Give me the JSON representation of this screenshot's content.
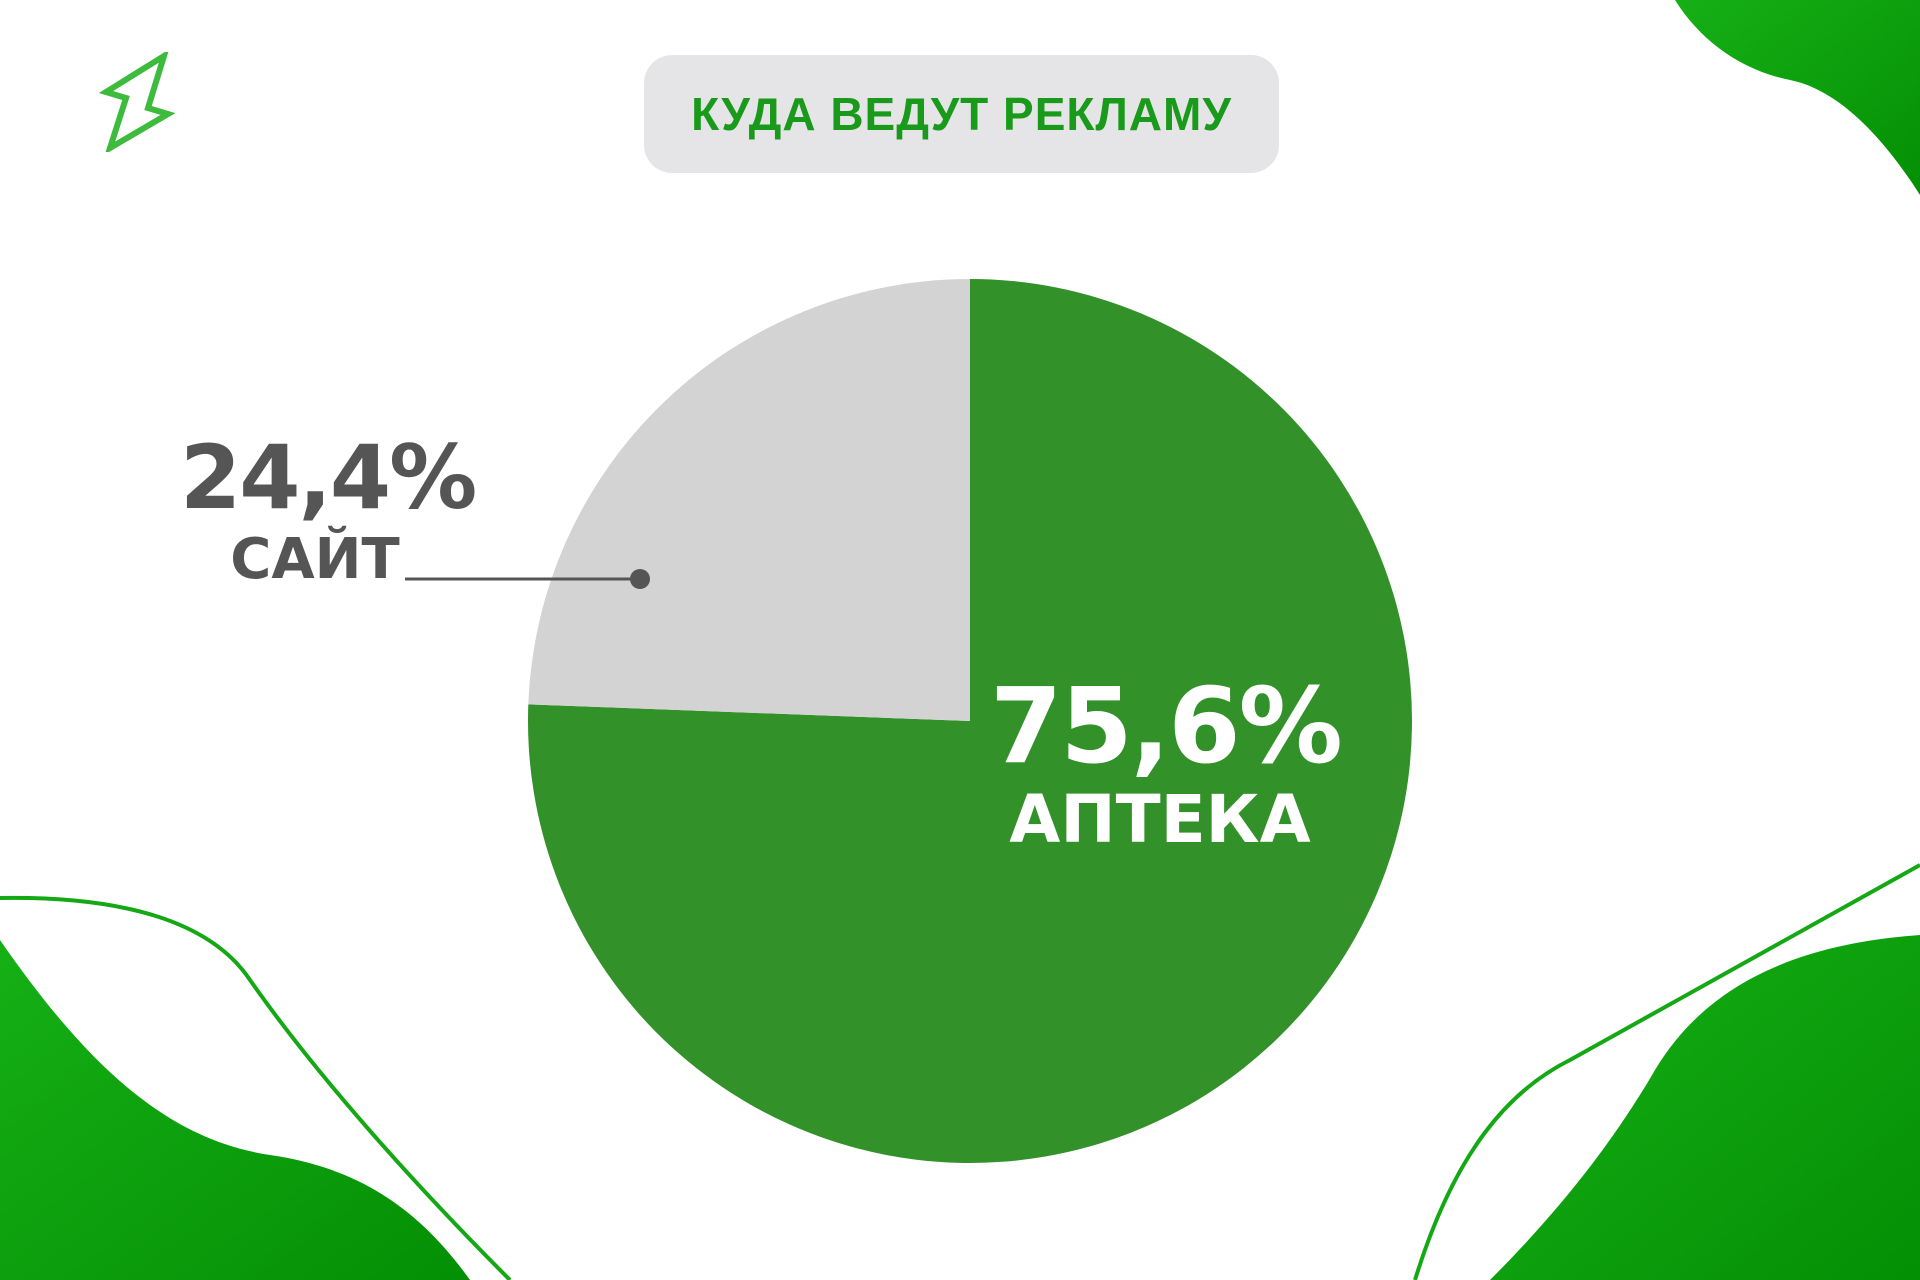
{
  "header": {
    "title": "КУДА ВЕДУТ РЕКЛАМУ"
  },
  "logo": {
    "icon": "lightning-bolt-icon",
    "color": "#3dbb3d"
  },
  "colors": {
    "accent": "#1a9a1a",
    "pharmacy_slice": "#329129",
    "site_slice": "#d3d3d4",
    "label_dark": "#555555",
    "decor_green": "#0b9a0b"
  },
  "chart_data": {
    "type": "pie",
    "title": "КУДА ВЕДУТ РЕКЛАМУ",
    "slices": [
      {
        "label": "АПТЕКА",
        "value": 75.6,
        "value_label": "75,6%",
        "color": "#329129"
      },
      {
        "label": "САЙТ",
        "value": 24.4,
        "value_label": "24,4%",
        "color": "#d3d3d4"
      }
    ],
    "start_angle_deg": 0,
    "direction": "clockwise"
  }
}
